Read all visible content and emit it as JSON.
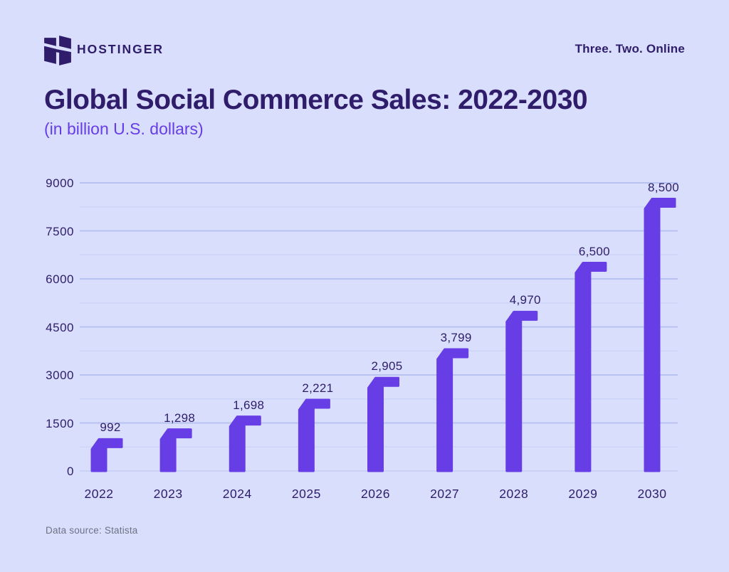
{
  "header": {
    "brand": "HOSTINGER",
    "tagline": "Three. Two. Online"
  },
  "title": "Global Social Commerce Sales: 2022-2030",
  "subtitle": "(in billion U.S. dollars)",
  "footer": {
    "source": "Data source: Statista"
  },
  "colors": {
    "background": "#d8defc",
    "bar": "#673de6",
    "text_dark": "#2f1c6a",
    "accent": "#673de6",
    "grid_major": "#b8c2f0",
    "grid_minor": "#ccd4f8",
    "axis_baseline": "#c9d1f6",
    "source_text": "#6e7284",
    "logo": "#2f1c6a"
  },
  "chart_data": {
    "type": "bar",
    "title": "Global Social Commerce Sales: 2022-2030",
    "subtitle": "(in billion U.S. dollars)",
    "categories": [
      "2022",
      "2023",
      "2024",
      "2025",
      "2026",
      "2027",
      "2028",
      "2029",
      "2030"
    ],
    "values": [
      992,
      1298,
      1698,
      2221,
      2905,
      3799,
      4970,
      6500,
      8500
    ],
    "value_labels": [
      "992",
      "1,298",
      "1,698",
      "2,221",
      "2,905",
      "3,799",
      "4,970",
      "6,500",
      "8,500"
    ],
    "xlabel": "",
    "ylabel": "",
    "ylim": [
      0,
      9000
    ],
    "yticks": [
      0,
      1500,
      3000,
      4500,
      6000,
      7500,
      9000
    ],
    "ytick_step": 1500,
    "grid_minor_step": 750,
    "grid": "horizontal",
    "legend": false,
    "source": "Data source: Statista"
  }
}
